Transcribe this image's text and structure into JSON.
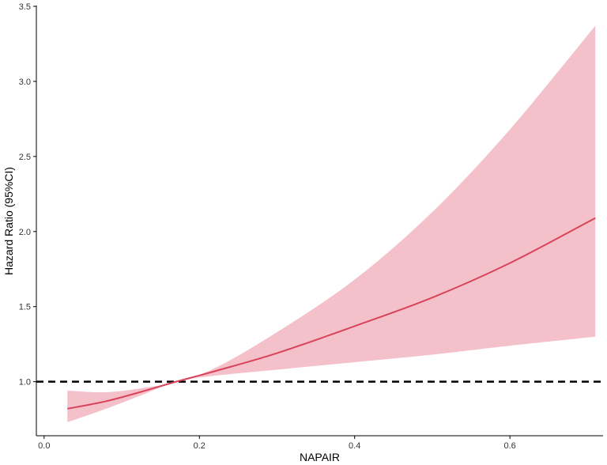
{
  "chart_data": {
    "type": "line",
    "title": "",
    "xlabel": "NAPAIR",
    "ylabel": "Hazard Ratio (95%CI)",
    "xlim": [
      -0.01,
      0.72
    ],
    "ylim": [
      0.64,
      3.5
    ],
    "x_ticks": [
      0.0,
      0.2,
      0.4,
      0.6
    ],
    "x_tick_labels": [
      "0.0",
      "0.2",
      "0.4",
      "0.6"
    ],
    "y_ticks": [
      1.0,
      1.5,
      2.0,
      2.5,
      3.0,
      3.5
    ],
    "y_tick_labels": [
      "1.0",
      "1.5",
      "2.0",
      "2.5",
      "3.0",
      "3.5"
    ],
    "grid": false,
    "legend": "none",
    "reference_line": {
      "y": 1.0,
      "style": "dashed",
      "color": "#000000"
    },
    "series": [
      {
        "x": [
          0.03,
          0.08,
          0.13,
          0.17,
          0.22,
          0.3,
          0.4,
          0.5,
          0.6,
          0.71
        ],
        "y": [
          0.82,
          0.87,
          0.94,
          1.0,
          1.07,
          1.19,
          1.37,
          1.56,
          1.79,
          2.09
        ],
        "lower": [
          0.73,
          0.82,
          0.92,
          1.0,
          1.04,
          1.08,
          1.13,
          1.18,
          1.24,
          1.3
        ],
        "upper": [
          0.94,
          0.93,
          0.96,
          1.0,
          1.09,
          1.33,
          1.68,
          2.13,
          2.68,
          3.37
        ],
        "color": "#d9435a",
        "band_color": "#f4c1cb"
      }
    ]
  }
}
